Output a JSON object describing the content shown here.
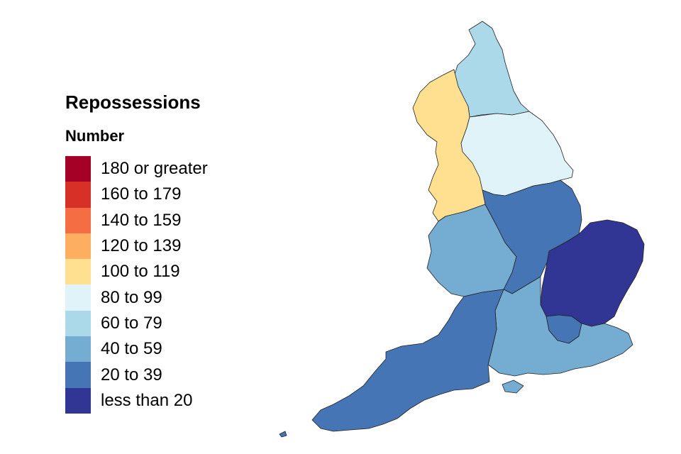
{
  "legend": {
    "title": "Repossessions",
    "subtitle": "Number",
    "items": [
      {
        "label": "180 or greater",
        "color": "#a50026"
      },
      {
        "label": "160 to 179",
        "color": "#d73027"
      },
      {
        "label": "140 to 159",
        "color": "#f46d43"
      },
      {
        "label": "120 to 139",
        "color": "#fdae61"
      },
      {
        "label": "100 to 119",
        "color": "#fee090"
      },
      {
        "label": "80 to 99",
        "color": "#e0f3f8"
      },
      {
        "label": "60 to 79",
        "color": "#abd9e9"
      },
      {
        "label": "40 to 59",
        "color": "#74add1"
      },
      {
        "label": "20 to 39",
        "color": "#4575b4"
      },
      {
        "label": "less than 20",
        "color": "#313695"
      }
    ]
  },
  "map": {
    "regions": [
      {
        "name": "North East",
        "band": "60 to 79",
        "color": "#abd9e9"
      },
      {
        "name": "North West",
        "band": "100 to 119",
        "color": "#fee090"
      },
      {
        "name": "Yorkshire and The Humber",
        "band": "80 to 99",
        "color": "#e0f3f8"
      },
      {
        "name": "East Midlands",
        "band": "20 to 39",
        "color": "#4575b4"
      },
      {
        "name": "West Midlands",
        "band": "40 to 59",
        "color": "#74add1"
      },
      {
        "name": "East of England",
        "band": "less than 20",
        "color": "#313695"
      },
      {
        "name": "London",
        "band": "20 to 39",
        "color": "#4575b4"
      },
      {
        "name": "South East",
        "band": "40 to 59",
        "color": "#74add1"
      },
      {
        "name": "South West",
        "band": "20 to 39",
        "color": "#4575b4"
      }
    ]
  }
}
